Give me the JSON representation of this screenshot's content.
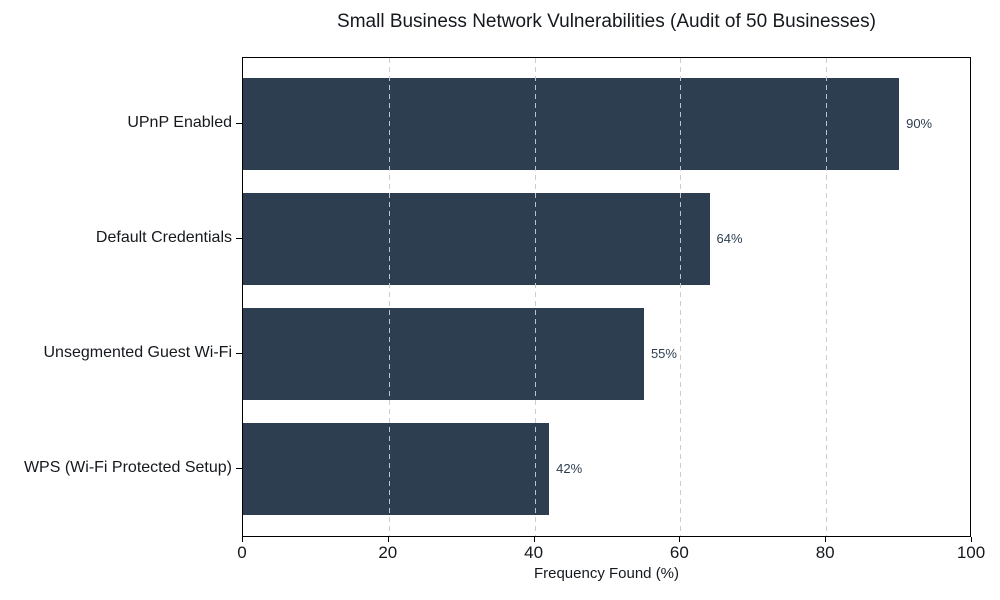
{
  "chart_data": {
    "type": "bar",
    "orientation": "horizontal",
    "title": "Small Business Network Vulnerabilities (Audit of 50 Businesses)",
    "categories": [
      "UPnP Enabled",
      "Default Credentials",
      "Unsegmented Guest Wi-Fi",
      "WPS (Wi-Fi Protected Setup)"
    ],
    "values": [
      90,
      64,
      55,
      42
    ],
    "value_labels": [
      "90%",
      "64%",
      "55%",
      "42%"
    ],
    "xlabel": "Frequency Found (%)",
    "ylabel": "",
    "xlim": [
      0,
      100
    ],
    "xticks": [
      0,
      20,
      40,
      60,
      80,
      100
    ],
    "gridline_positions": [
      20,
      40,
      60,
      80
    ],
    "grid": "vertical-dashed-over-bars",
    "legend": "none",
    "colors": {
      "bar": "#2c3e50",
      "value_label": "#2c3e50",
      "gridline": "#c9c9c9",
      "spine": "#000000",
      "text": "#15191e",
      "background": "#ffffff"
    }
  }
}
